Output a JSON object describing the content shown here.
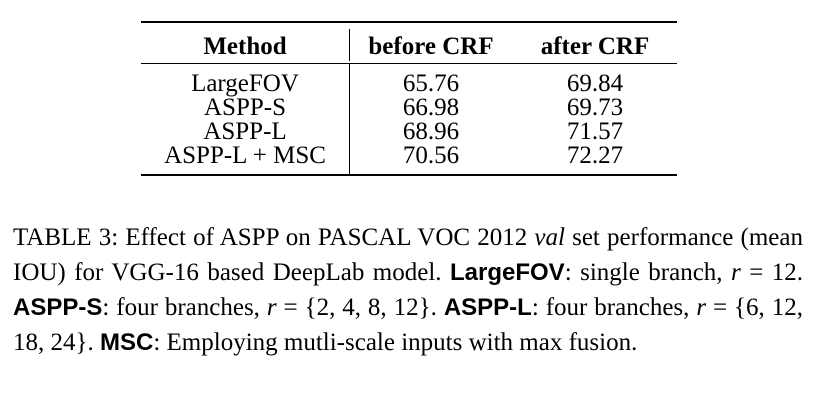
{
  "table": {
    "headers": [
      "Method",
      "before CRF",
      "after CRF"
    ],
    "rows": [
      [
        "LargeFOV",
        "65.76",
        "69.84"
      ],
      [
        "ASPP-S",
        "66.98",
        "69.73"
      ],
      [
        "ASPP-L",
        "68.96",
        "71.57"
      ],
      [
        "ASPP-L + MSC",
        "70.56",
        "72.27"
      ]
    ]
  },
  "caption": {
    "intro": "TABLE 3: Effect of ASPP on PASCAL VOC 2012 ",
    "val": "val",
    "intro_rest": " set performance (mean IOU) for VGG-16 based DeepLab model. ",
    "largefov_term": "LargeFOV",
    "largefov_desc_a": ": single branch, ",
    "r1": "r",
    "largefov_desc_b": " = 12. ",
    "aspps_term": "ASPP-S",
    "aspps_desc_a": ": four branches, ",
    "r2": "r",
    "aspps_desc_b": " = {2, 4, 8, 12}. ",
    "asppl_term": "ASPP-L",
    "asppl_desc_a": ": four branches, ",
    "r3": "r",
    "asppl_desc_b": " = {6, 12, 18, 24}. ",
    "msc_term": "MSC",
    "msc_desc": ": Employing mutli-scale inputs with max fusion."
  }
}
